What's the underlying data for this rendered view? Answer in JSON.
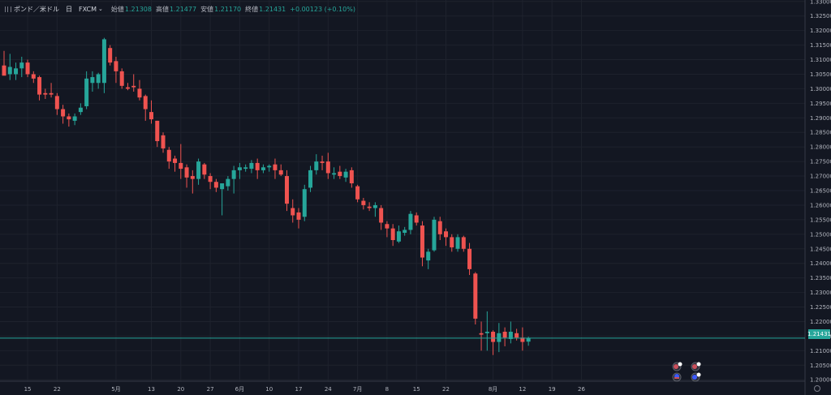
{
  "legend": {
    "symbol": "ポンド／米ドル",
    "interval": "日",
    "source": "FXCM",
    "open_label": "始値",
    "open_value": "1.21308",
    "high_label": "高値",
    "high_value": "1.21477",
    "low_label": "安値",
    "low_value": "1.21170",
    "close_label": "終値",
    "close_value": "1.21431",
    "change": "+0.00123 (+0.10%)"
  },
  "last_price_label": "1.21431",
  "colors": {
    "background": "#131722",
    "up": "#26a69a",
    "down": "#ef5350",
    "axis_text": "#b2b5be",
    "last_price_line": "#26a69a"
  },
  "icons": [
    "drag-handle-icon",
    "chevron-down-icon",
    "flag-event-icon",
    "settings-gear-icon"
  ],
  "chart_data": {
    "type": "candlestick",
    "instrument": "GBP/USD",
    "timeframe": "daily",
    "y_ticks": [
      "1.33000",
      "1.32500",
      "1.32000",
      "1.31500",
      "1.31000",
      "1.30500",
      "1.30000",
      "1.29500",
      "1.29000",
      "1.28500",
      "1.28000",
      "1.27500",
      "1.27000",
      "1.26500",
      "1.26000",
      "1.25500",
      "1.25000",
      "1.24500",
      "1.24000",
      "1.23500",
      "1.23000",
      "1.22500",
      "1.22000",
      "1.21500",
      "1.21000",
      "1.20500",
      "1.20000"
    ],
    "x_ticks": [
      {
        "label": "15",
        "index": 4
      },
      {
        "label": "22",
        "index": 9
      },
      {
        "label": "5月",
        "index": 19
      },
      {
        "label": "13",
        "index": 25
      },
      {
        "label": "20",
        "index": 30
      },
      {
        "label": "27",
        "index": 35
      },
      {
        "label": "6月",
        "index": 40
      },
      {
        "label": "10",
        "index": 45
      },
      {
        "label": "17",
        "index": 50
      },
      {
        "label": "24",
        "index": 55
      },
      {
        "label": "7月",
        "index": 60
      },
      {
        "label": "8",
        "index": 65
      },
      {
        "label": "15",
        "index": 70
      },
      {
        "label": "22",
        "index": 75
      },
      {
        "label": "8月",
        "index": 83
      },
      {
        "label": "12",
        "index": 88
      },
      {
        "label": "19",
        "index": 93
      },
      {
        "label": "26",
        "index": 98
      }
    ],
    "ylim": [
      1.1995,
      1.3305
    ],
    "candles": [
      {
        "o": 1.308,
        "h": 1.313,
        "l": 1.305,
        "c": 1.3045
      },
      {
        "o": 1.305,
        "h": 1.312,
        "l": 1.303,
        "c": 1.3075
      },
      {
        "o": 1.305,
        "h": 1.309,
        "l": 1.303,
        "c": 1.307
      },
      {
        "o": 1.307,
        "h": 1.311,
        "l": 1.304,
        "c": 1.309
      },
      {
        "o": 1.309,
        "h": 1.31,
        "l": 1.304,
        "c": 1.305
      },
      {
        "o": 1.305,
        "h": 1.306,
        "l": 1.302,
        "c": 1.3035
      },
      {
        "o": 1.304,
        "h": 1.3045,
        "l": 1.296,
        "c": 1.298
      },
      {
        "o": 1.2985,
        "h": 1.3,
        "l": 1.2965,
        "c": 1.298
      },
      {
        "o": 1.2985,
        "h": 1.302,
        "l": 1.297,
        "c": 1.298
      },
      {
        "o": 1.2975,
        "h": 1.2985,
        "l": 1.291,
        "c": 1.293
      },
      {
        "o": 1.293,
        "h": 1.2945,
        "l": 1.288,
        "c": 1.2905
      },
      {
        "o": 1.2905,
        "h": 1.2915,
        "l": 1.287,
        "c": 1.2895
      },
      {
        "o": 1.289,
        "h": 1.2915,
        "l": 1.2875,
        "c": 1.2905
      },
      {
        "o": 1.292,
        "h": 1.295,
        "l": 1.291,
        "c": 1.2935
      },
      {
        "o": 1.294,
        "h": 1.306,
        "l": 1.293,
        "c": 1.3035
      },
      {
        "o": 1.302,
        "h": 1.306,
        "l": 1.299,
        "c": 1.304
      },
      {
        "o": 1.302,
        "h": 1.3055,
        "l": 1.3,
        "c": 1.305
      },
      {
        "o": 1.302,
        "h": 1.3175,
        "l": 1.2985,
        "c": 1.317
      },
      {
        "o": 1.314,
        "h": 1.315,
        "l": 1.308,
        "c": 1.309
      },
      {
        "o": 1.3095,
        "h": 1.311,
        "l": 1.302,
        "c": 1.306
      },
      {
        "o": 1.306,
        "h": 1.307,
        "l": 1.3,
        "c": 1.301
      },
      {
        "o": 1.3005,
        "h": 1.302,
        "l": 1.2995,
        "c": 1.3
      },
      {
        "o": 1.301,
        "h": 1.305,
        "l": 1.299,
        "c": 1.3005
      },
      {
        "o": 1.3,
        "h": 1.303,
        "l": 1.296,
        "c": 1.297
      },
      {
        "o": 1.2975,
        "h": 1.298,
        "l": 1.289,
        "c": 1.293
      },
      {
        "o": 1.292,
        "h": 1.296,
        "l": 1.288,
        "c": 1.2895
      },
      {
        "o": 1.289,
        "h": 1.289,
        "l": 1.28,
        "c": 1.282
      },
      {
        "o": 1.284,
        "h": 1.285,
        "l": 1.278,
        "c": 1.2795
      },
      {
        "o": 1.279,
        "h": 1.28,
        "l": 1.2725,
        "c": 1.275
      },
      {
        "o": 1.276,
        "h": 1.277,
        "l": 1.2715,
        "c": 1.2745
      },
      {
        "o": 1.2745,
        "h": 1.281,
        "l": 1.269,
        "c": 1.2725
      },
      {
        "o": 1.273,
        "h": 1.274,
        "l": 1.266,
        "c": 1.2695
      },
      {
        "o": 1.27,
        "h": 1.272,
        "l": 1.264,
        "c": 1.269
      },
      {
        "o": 1.269,
        "h": 1.276,
        "l": 1.267,
        "c": 1.275
      },
      {
        "o": 1.274,
        "h": 1.2745,
        "l": 1.269,
        "c": 1.2705
      },
      {
        "o": 1.27,
        "h": 1.271,
        "l": 1.2655,
        "c": 1.268
      },
      {
        "o": 1.268,
        "h": 1.269,
        "l": 1.2645,
        "c": 1.266
      },
      {
        "o": 1.2655,
        "h": 1.267,
        "l": 1.2565,
        "c": 1.2675
      },
      {
        "o": 1.2665,
        "h": 1.27,
        "l": 1.265,
        "c": 1.269
      },
      {
        "o": 1.269,
        "h": 1.2735,
        "l": 1.264,
        "c": 1.272
      },
      {
        "o": 1.272,
        "h": 1.2745,
        "l": 1.269,
        "c": 1.273
      },
      {
        "o": 1.2725,
        "h": 1.274,
        "l": 1.2715,
        "c": 1.273
      },
      {
        "o": 1.2725,
        "h": 1.2755,
        "l": 1.271,
        "c": 1.2745
      },
      {
        "o": 1.2745,
        "h": 1.276,
        "l": 1.269,
        "c": 1.272
      },
      {
        "o": 1.272,
        "h": 1.274,
        "l": 1.271,
        "c": 1.273
      },
      {
        "o": 1.273,
        "h": 1.274,
        "l": 1.2715,
        "c": 1.2735
      },
      {
        "o": 1.274,
        "h": 1.276,
        "l": 1.269,
        "c": 1.272
      },
      {
        "o": 1.272,
        "h": 1.274,
        "l": 1.27,
        "c": 1.2705
      },
      {
        "o": 1.27,
        "h": 1.272,
        "l": 1.258,
        "c": 1.2605
      },
      {
        "o": 1.259,
        "h": 1.262,
        "l": 1.254,
        "c": 1.2565
      },
      {
        "o": 1.2575,
        "h": 1.259,
        "l": 1.252,
        "c": 1.255
      },
      {
        "o": 1.256,
        "h": 1.267,
        "l": 1.2545,
        "c": 1.2655
      },
      {
        "o": 1.266,
        "h": 1.2735,
        "l": 1.2645,
        "c": 1.272
      },
      {
        "o": 1.272,
        "h": 1.2775,
        "l": 1.2705,
        "c": 1.275
      },
      {
        "o": 1.275,
        "h": 1.277,
        "l": 1.272,
        "c": 1.2745
      },
      {
        "o": 1.275,
        "h": 1.278,
        "l": 1.269,
        "c": 1.271
      },
      {
        "o": 1.2705,
        "h": 1.273,
        "l": 1.269,
        "c": 1.271
      },
      {
        "o": 1.2715,
        "h": 1.2735,
        "l": 1.269,
        "c": 1.27
      },
      {
        "o": 1.2695,
        "h": 1.2725,
        "l": 1.268,
        "c": 1.2715
      },
      {
        "o": 1.272,
        "h": 1.273,
        "l": 1.266,
        "c": 1.2675
      },
      {
        "o": 1.2665,
        "h": 1.267,
        "l": 1.261,
        "c": 1.262
      },
      {
        "o": 1.2615,
        "h": 1.2625,
        "l": 1.2585,
        "c": 1.26
      },
      {
        "o": 1.2595,
        "h": 1.261,
        "l": 1.258,
        "c": 1.259
      },
      {
        "o": 1.259,
        "h": 1.261,
        "l": 1.256,
        "c": 1.26
      },
      {
        "o": 1.259,
        "h": 1.26,
        "l": 1.2515,
        "c": 1.254
      },
      {
        "o": 1.2535,
        "h": 1.2545,
        "l": 1.249,
        "c": 1.252
      },
      {
        "o": 1.252,
        "h": 1.2535,
        "l": 1.246,
        "c": 1.248
      },
      {
        "o": 1.2475,
        "h": 1.253,
        "l": 1.247,
        "c": 1.251
      },
      {
        "o": 1.2505,
        "h": 1.2525,
        "l": 1.2495,
        "c": 1.2515
      },
      {
        "o": 1.2515,
        "h": 1.258,
        "l": 1.25,
        "c": 1.257
      },
      {
        "o": 1.2565,
        "h": 1.2575,
        "l": 1.253,
        "c": 1.254
      },
      {
        "o": 1.253,
        "h": 1.2545,
        "l": 1.239,
        "c": 1.242
      },
      {
        "o": 1.241,
        "h": 1.245,
        "l": 1.238,
        "c": 1.244
      },
      {
        "o": 1.2445,
        "h": 1.256,
        "l": 1.244,
        "c": 1.255
      },
      {
        "o": 1.2545,
        "h": 1.256,
        "l": 1.248,
        "c": 1.25
      },
      {
        "o": 1.251,
        "h": 1.252,
        "l": 1.246,
        "c": 1.249
      },
      {
        "o": 1.249,
        "h": 1.25,
        "l": 1.244,
        "c": 1.2455
      },
      {
        "o": 1.245,
        "h": 1.25,
        "l": 1.244,
        "c": 1.249
      },
      {
        "o": 1.249,
        "h": 1.2495,
        "l": 1.244,
        "c": 1.245
      },
      {
        "o": 1.245,
        "h": 1.247,
        "l": 1.236,
        "c": 1.238
      },
      {
        "o": 1.2365,
        "h": 1.237,
        "l": 1.219,
        "c": 1.221
      },
      {
        "o": 1.216,
        "h": 1.22,
        "l": 1.21,
        "c": 1.2155
      },
      {
        "o": 1.216,
        "h": 1.2235,
        "l": 1.21,
        "c": 1.2165
      },
      {
        "o": 1.2165,
        "h": 1.217,
        "l": 1.2085,
        "c": 1.213
      },
      {
        "o": 1.213,
        "h": 1.2195,
        "l": 1.2095,
        "c": 1.216
      },
      {
        "o": 1.2165,
        "h": 1.218,
        "l": 1.2115,
        "c": 1.2145
      },
      {
        "o": 1.214,
        "h": 1.22,
        "l": 1.2125,
        "c": 1.2165
      },
      {
        "o": 1.216,
        "h": 1.2175,
        "l": 1.2135,
        "c": 1.2145
      },
      {
        "o": 1.2145,
        "h": 1.218,
        "l": 1.21,
        "c": 1.213
      },
      {
        "o": 1.2131,
        "h": 1.2148,
        "l": 1.2117,
        "c": 1.2143
      }
    ]
  }
}
